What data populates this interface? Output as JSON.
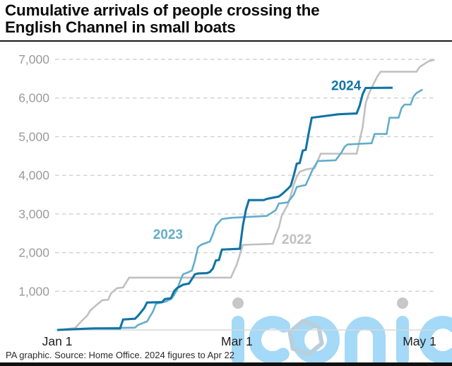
{
  "title": {
    "line1": "Cumulative arrivals of people crossing the",
    "line2": "English Channel in small boats"
  },
  "footer": {
    "source": "PA graphic. Source: Home Office. 2024 figures to Apr 22"
  },
  "watermark": {
    "text": "iconic",
    "letter_color": "#a4d9f7",
    "dot_color": "#c7c7c7",
    "hexagon_color": "#b9cfdb"
  },
  "chart_data": {
    "type": "line",
    "title": "Cumulative arrivals of people crossing the English Channel in small boats",
    "xlabel": "",
    "ylabel": "",
    "x_unit": "days since Jan 1",
    "y_unit": "people (cumulative)",
    "ylim": [
      0,
      7160
    ],
    "xlim_days": [
      0,
      126
    ],
    "grid": "dashed horizontal",
    "colors": {
      "grid": "#d0d0d0",
      "axis_line": "#d9d9d9",
      "y_label": "#9b9b9b",
      "x_label": "#1e1e1e"
    },
    "x_ticks": [
      {
        "label": "Jan 1",
        "day": 0
      },
      {
        "label": "Mar 1",
        "day": 60
      },
      {
        "label": "May 1",
        "day": 121
      }
    ],
    "y_ticks": [
      {
        "value": 1000,
        "label": "1,000"
      },
      {
        "value": 2000,
        "label": "2,000"
      },
      {
        "value": 3000,
        "label": "3,000"
      },
      {
        "value": 4000,
        "label": "4,000"
      },
      {
        "value": 5000,
        "label": "5,000"
      },
      {
        "value": 6000,
        "label": "6,000"
      },
      {
        "value": 7000,
        "label": "7,000"
      }
    ],
    "series": [
      {
        "name": "2022",
        "color": "#c0c0c0",
        "width": 2.6,
        "label": {
          "text": "2022",
          "day": 80,
          "value": 2360
        },
        "points": [
          [
            0,
            0
          ],
          [
            6,
            50
          ],
          [
            8,
            220
          ],
          [
            10,
            370
          ],
          [
            11,
            500
          ],
          [
            13,
            640
          ],
          [
            14,
            700
          ],
          [
            15,
            770
          ],
          [
            17,
            780
          ],
          [
            18,
            950
          ],
          [
            20,
            1080
          ],
          [
            22,
            1100
          ],
          [
            23,
            1225
          ],
          [
            24,
            1354
          ],
          [
            58,
            1354
          ],
          [
            60,
            1700
          ],
          [
            61,
            1950
          ],
          [
            62,
            2200
          ],
          [
            72,
            2230
          ],
          [
            73,
            2450
          ],
          [
            74,
            2650
          ],
          [
            75,
            2960
          ],
          [
            76,
            3100
          ],
          [
            77,
            3240
          ],
          [
            78,
            3480
          ],
          [
            79,
            3760
          ],
          [
            80,
            3970
          ],
          [
            81,
            4090
          ],
          [
            83,
            4150
          ],
          [
            86,
            4190
          ],
          [
            87,
            4380
          ],
          [
            88,
            4560
          ],
          [
            100,
            4560
          ],
          [
            101,
            4900
          ],
          [
            102,
            5250
          ],
          [
            103,
            5860
          ],
          [
            104,
            6100
          ],
          [
            105,
            6260
          ],
          [
            106,
            6420
          ],
          [
            107,
            6570
          ],
          [
            108,
            6680
          ],
          [
            120,
            6680
          ],
          [
            121,
            6800
          ],
          [
            124,
            6950
          ],
          [
            126,
            6990
          ]
        ]
      },
      {
        "name": "2023",
        "color": "#63adcb",
        "width": 2.6,
        "label": {
          "text": "2023",
          "day": 37,
          "value": 2490
        },
        "points": [
          [
            0,
            0
          ],
          [
            12,
            40
          ],
          [
            26,
            60
          ],
          [
            27,
            130
          ],
          [
            30,
            220
          ],
          [
            32,
            480
          ],
          [
            33,
            680
          ],
          [
            36,
            730
          ],
          [
            38,
            800
          ],
          [
            39,
            900
          ],
          [
            40,
            1040
          ],
          [
            41,
            1250
          ],
          [
            42,
            1440
          ],
          [
            44,
            1500
          ],
          [
            45,
            1540
          ],
          [
            46,
            1800
          ],
          [
            47,
            2140
          ],
          [
            48,
            2200
          ],
          [
            49,
            2230
          ],
          [
            51,
            2290
          ],
          [
            52,
            2480
          ],
          [
            53,
            2700
          ],
          [
            55,
            2870
          ],
          [
            58,
            2900
          ],
          [
            70,
            2950
          ],
          [
            73,
            3100
          ],
          [
            74,
            3270
          ],
          [
            77,
            3300
          ],
          [
            79,
            3500
          ],
          [
            80,
            3700
          ],
          [
            83,
            3750
          ],
          [
            85,
            4100
          ],
          [
            86,
            4240
          ],
          [
            87,
            4370
          ],
          [
            93,
            4390
          ],
          [
            95,
            4600
          ],
          [
            96,
            4740
          ],
          [
            97,
            4800
          ],
          [
            105,
            4830
          ],
          [
            106,
            5070
          ],
          [
            110,
            5070
          ],
          [
            111,
            5490
          ],
          [
            114,
            5490
          ],
          [
            115,
            5740
          ],
          [
            116,
            5830
          ],
          [
            118,
            5830
          ],
          [
            119,
            6040
          ],
          [
            120,
            6130
          ],
          [
            122,
            6220
          ]
        ]
      },
      {
        "name": "2024",
        "color": "#1274a5",
        "width": 3.1,
        "label": {
          "text": "2024",
          "day": 96.5,
          "value": 6330
        },
        "points": [
          [
            0,
            0
          ],
          [
            12,
            40
          ],
          [
            21,
            40
          ],
          [
            22,
            270
          ],
          [
            26,
            290
          ],
          [
            27,
            370
          ],
          [
            29,
            560
          ],
          [
            30,
            710
          ],
          [
            35,
            720
          ],
          [
            36,
            800
          ],
          [
            38,
            820
          ],
          [
            39,
            1000
          ],
          [
            40,
            1080
          ],
          [
            42,
            1170
          ],
          [
            44,
            1200
          ],
          [
            45,
            1320
          ],
          [
            46,
            1440
          ],
          [
            47,
            1460
          ],
          [
            50,
            1470
          ],
          [
            51,
            1500
          ],
          [
            52,
            1590
          ],
          [
            53,
            1800
          ],
          [
            54,
            1810
          ],
          [
            55,
            2080
          ],
          [
            61,
            2100
          ],
          [
            62,
            2700
          ],
          [
            63,
            3100
          ],
          [
            64,
            3360
          ],
          [
            69,
            3360
          ],
          [
            70,
            3390
          ],
          [
            74,
            3450
          ],
          [
            75,
            3510
          ],
          [
            77,
            3650
          ],
          [
            78,
            3730
          ],
          [
            79,
            4000
          ],
          [
            80,
            4300
          ],
          [
            81,
            4320
          ],
          [
            82,
            4640
          ],
          [
            83,
            4660
          ],
          [
            84,
            5100
          ],
          [
            85,
            5490
          ],
          [
            94,
            5580
          ],
          [
            100,
            5600
          ],
          [
            101,
            5800
          ],
          [
            102,
            6100
          ],
          [
            103,
            6260
          ],
          [
            112,
            6265
          ]
        ]
      }
    ]
  }
}
